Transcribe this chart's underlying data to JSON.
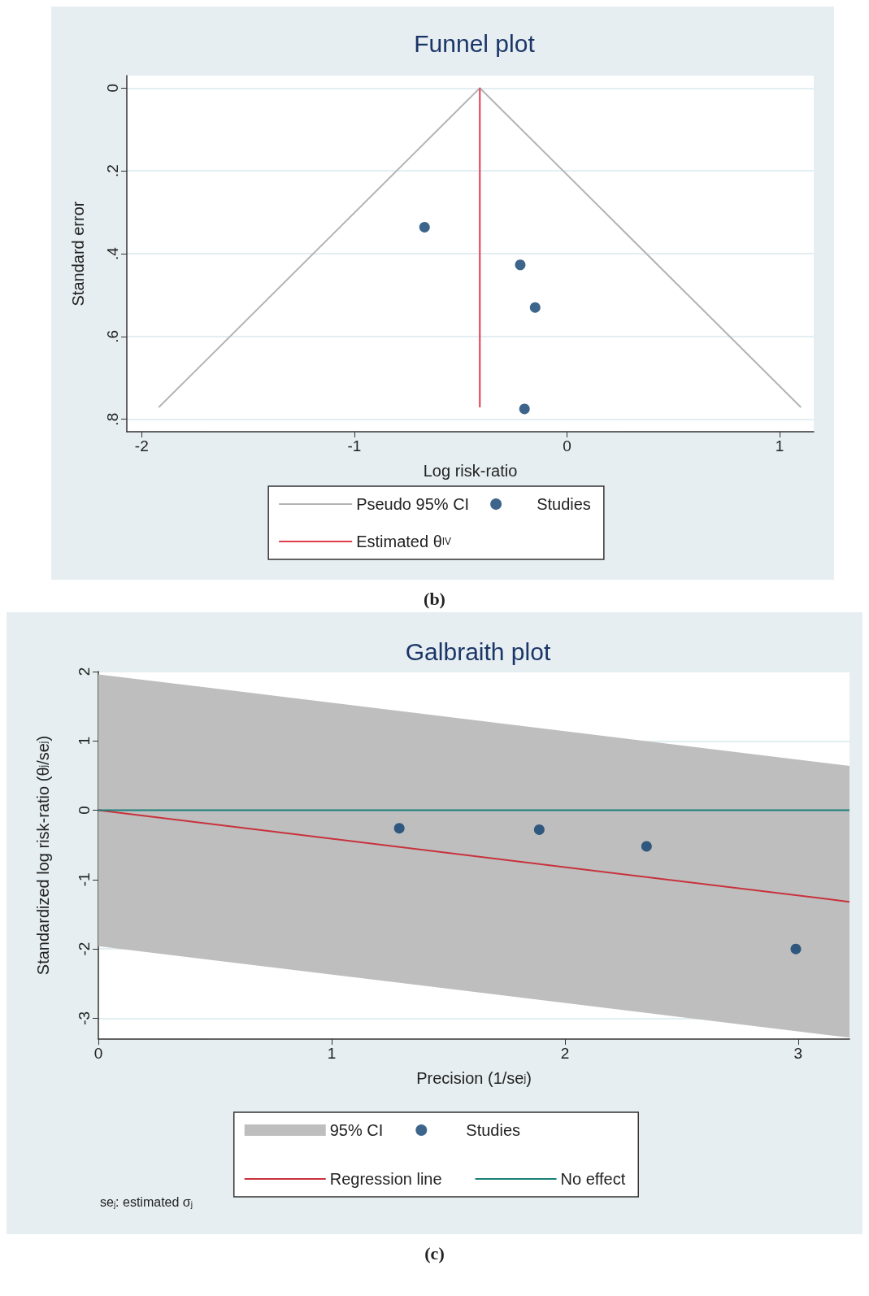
{
  "chart_data": [
    {
      "type": "scatter",
      "title": "Funnel plot",
      "xlabel": "Log risk-ratio",
      "ylabel": "Standard error",
      "xlim": [
        -2.07,
        1.16
      ],
      "xticks": [
        -2,
        -1,
        0,
        1
      ],
      "ylim": [
        0.83,
        -0.03
      ],
      "yticks": [
        0,
        {
          "value": 0.2,
          "label": ".2"
        },
        {
          "value": 0.4,
          "label": ".4"
        },
        {
          "value": 0.6,
          "label": ".6"
        },
        {
          "value": 0.8,
          "label": ".8"
        }
      ],
      "grid": "y",
      "legend": "bottom",
      "series": [
        {
          "type": "line",
          "name": "Pseudo 95% CI",
          "color": "#b4b4b4",
          "x": [
            -1.92,
            -0.41,
            1.1
          ],
          "values": [
            0.771,
            0,
            0.771
          ]
        },
        {
          "type": "scatter",
          "name": "Studies",
          "color": "#0d3f6e",
          "marker": "circle",
          "x": [
            -0.67,
            -0.22,
            -0.15,
            -0.2
          ],
          "values": [
            0.336,
            0.427,
            0.53,
            0.775
          ]
        },
        {
          "type": "line",
          "name": "Estimated θ$_{IV}$",
          "color": "#e03c50",
          "x": [
            -0.41,
            -0.41
          ],
          "values": [
            0,
            0.771
          ]
        }
      ],
      "annotations": [
        "(b)"
      ]
    },
    {
      "type": "scatter",
      "title": "Galbraith plot",
      "xlabel": "Precision (1/se$_{j}$)",
      "ylabel": "Standardized log risk-ratio (θ$_{j}$/se$_{j}$)",
      "xlim": [
        0,
        3.22
      ],
      "xticks": [
        0,
        1,
        2,
        3
      ],
      "ylim": [
        -3.3,
        2
      ],
      "yticks": [
        -3,
        -2,
        -1,
        0,
        1,
        2
      ],
      "grid": "y",
      "legend": "bottom",
      "series": [
        {
          "type": "area",
          "name": "95% CI",
          "color": "#bebebe",
          "x": [
            0,
            3.22
          ],
          "values": [
            null,
            null
          ],
          "lower": [
            -1.96,
            -3.28
          ],
          "upper": [
            1.96,
            0.64
          ]
        },
        {
          "type": "scatter",
          "name": "Studies",
          "color": "#0d3f6e",
          "marker": "circle",
          "x": [
            1.29,
            1.89,
            2.35,
            2.99
          ],
          "values": [
            -0.26,
            -0.28,
            -0.52,
            -2.0
          ]
        },
        {
          "type": "line",
          "name": "Regression line",
          "color": "#c8323c",
          "x": [
            0,
            3.22
          ],
          "values": [
            0,
            -1.32
          ]
        },
        {
          "type": "line",
          "name": "No effect",
          "color": "#1a8078",
          "x": [
            0,
            3.22
          ],
          "values": [
            0,
            0
          ]
        }
      ],
      "annotations": [
        "se$_{j}$: estimated σ$_{j}$",
        "(c)"
      ]
    }
  ]
}
